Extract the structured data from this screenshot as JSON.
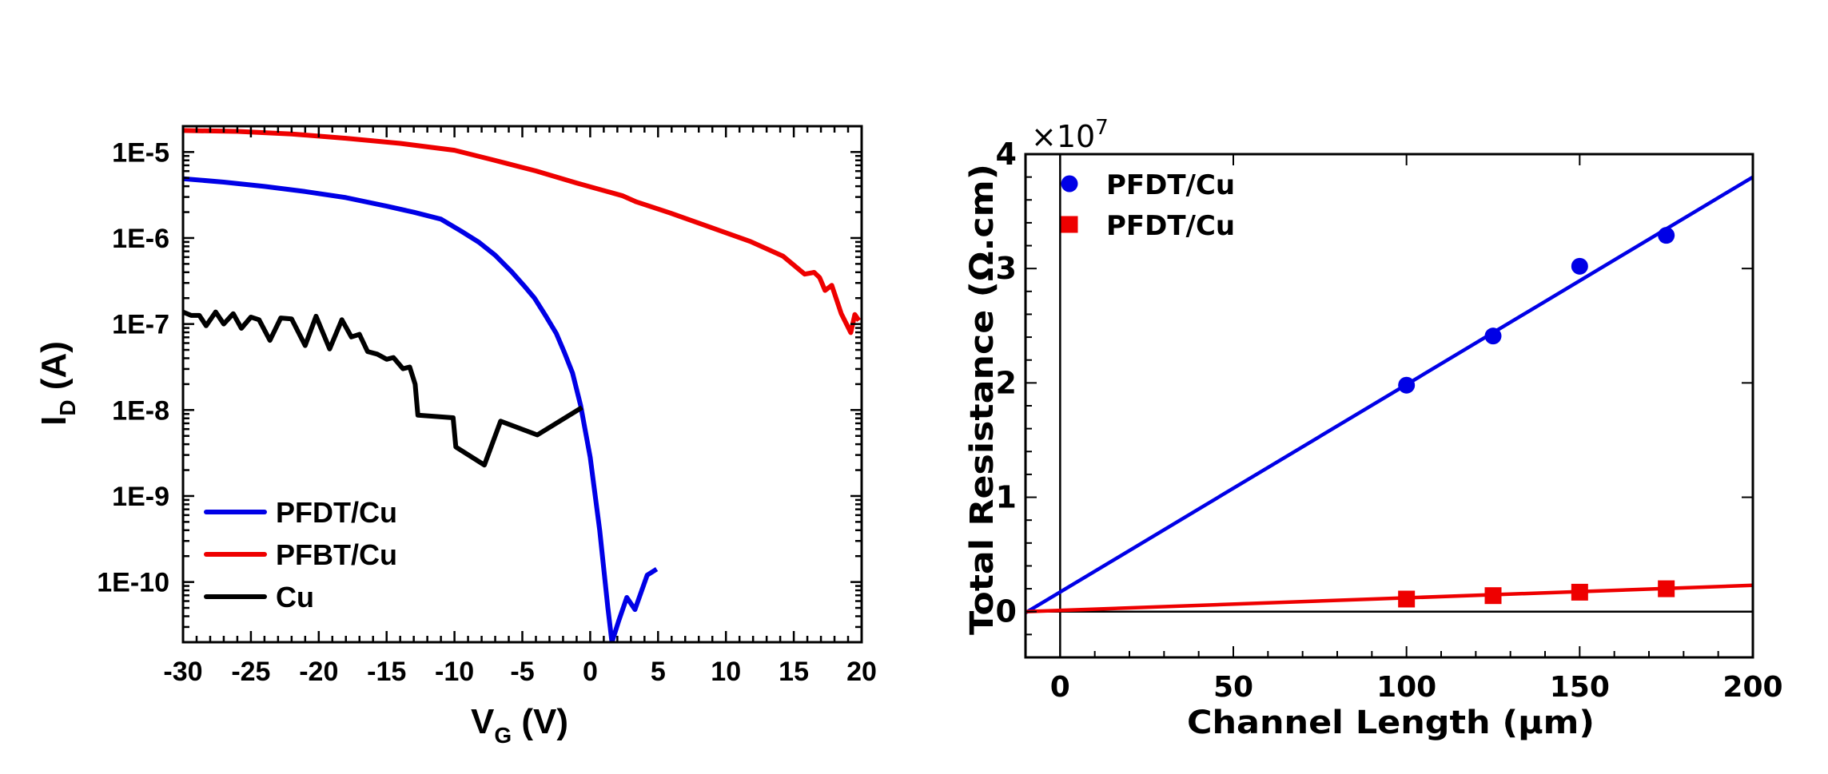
{
  "chart_data": [
    {
      "type": "line",
      "title": "",
      "xlabel": "V",
      "xlabel_sub": "G",
      "xlabel_unit": " (V)",
      "ylabel": "I",
      "ylabel_sub": "D",
      "ylabel_unit": " (A)",
      "yscale": "log",
      "xlim": [
        -30,
        20
      ],
      "ylim_log10": [
        -10.7,
        -4.7
      ],
      "xticks": [
        -30,
        -25,
        -20,
        -15,
        -10,
        -5,
        0,
        5,
        10,
        15,
        20
      ],
      "xtick_labels": [
        "-30",
        "-25",
        "-20",
        "-15",
        "-10",
        "-5",
        "0",
        "5",
        "10",
        "15",
        "20"
      ],
      "yticks_log10": [
        -5,
        -6,
        -7,
        -8,
        -9,
        -10
      ],
      "ytick_labels": [
        "1E-5",
        "1E-6",
        "1E-7",
        "1E-8",
        "1E-9",
        "1E-10"
      ],
      "grid": false,
      "legend_position": "bottom-left",
      "series": [
        {
          "name": "PFDT/Cu",
          "color": "#0000e6",
          "points_log10": [
            [
              -30,
              -5.31
            ],
            [
              -27,
              -5.35
            ],
            [
              -24,
              -5.4
            ],
            [
              -21,
              -5.46
            ],
            [
              -18,
              -5.53
            ],
            [
              -15,
              -5.63
            ],
            [
              -13,
              -5.7
            ],
            [
              -11,
              -5.78
            ],
            [
              -9.5,
              -5.92
            ],
            [
              -8.2,
              -6.05
            ],
            [
              -7,
              -6.2
            ],
            [
              -5.8,
              -6.39
            ],
            [
              -4.9,
              -6.55
            ],
            [
              -4.1,
              -6.7
            ],
            [
              -3.3,
              -6.9
            ],
            [
              -2.5,
              -7.11
            ],
            [
              -1.9,
              -7.33
            ],
            [
              -1.3,
              -7.57
            ],
            [
              -0.7,
              -7.95
            ],
            [
              0,
              -8.55
            ],
            [
              0.7,
              -9.4
            ],
            [
              1.3,
              -10.3
            ],
            [
              1.6,
              -10.7
            ],
            [
              2.1,
              -10.45
            ],
            [
              2.7,
              -10.18
            ],
            [
              3.3,
              -10.32
            ],
            [
              4.2,
              -9.92
            ],
            [
              4.9,
              -9.85
            ]
          ]
        },
        {
          "name": "PFBT/Cu",
          "color": "#ee0000",
          "points_log10": [
            [
              -30,
              -4.75
            ],
            [
              -26,
              -4.76
            ],
            [
              -22,
              -4.79
            ],
            [
              -18,
              -4.84
            ],
            [
              -14,
              -4.9
            ],
            [
              -10,
              -4.98
            ],
            [
              -7.2,
              -5.09
            ],
            [
              -4,
              -5.22
            ],
            [
              -1,
              -5.36
            ],
            [
              2.4,
              -5.51
            ],
            [
              3.4,
              -5.58
            ],
            [
              5.9,
              -5.71
            ],
            [
              9.3,
              -5.9
            ],
            [
              11.8,
              -6.04
            ],
            [
              14.2,
              -6.21
            ],
            [
              15.8,
              -6.42
            ],
            [
              16.5,
              -6.4
            ],
            [
              16.9,
              -6.46
            ],
            [
              17.3,
              -6.61
            ],
            [
              17.8,
              -6.55
            ],
            [
              18.5,
              -6.88
            ],
            [
              19.2,
              -7.1
            ],
            [
              19.5,
              -6.89
            ],
            [
              19.8,
              -6.96
            ]
          ]
        },
        {
          "name": "Cu",
          "color": "#000000",
          "points_log10": [
            [
              -30,
              -6.86
            ],
            [
              -29.4,
              -6.9
            ],
            [
              -28.8,
              -6.9
            ],
            [
              -28.3,
              -7.02
            ],
            [
              -27.6,
              -6.86
            ],
            [
              -27.0,
              -7.0
            ],
            [
              -26.3,
              -6.88
            ],
            [
              -25.7,
              -7.05
            ],
            [
              -25.0,
              -6.92
            ],
            [
              -24.4,
              -6.95
            ],
            [
              -23.6,
              -7.19
            ],
            [
              -22.8,
              -6.93
            ],
            [
              -22.0,
              -6.94
            ],
            [
              -21.0,
              -7.25
            ],
            [
              -20.2,
              -6.91
            ],
            [
              -19.2,
              -7.29
            ],
            [
              -18.3,
              -6.95
            ],
            [
              -17.6,
              -7.15
            ],
            [
              -17.0,
              -7.12
            ],
            [
              -16.4,
              -7.32
            ],
            [
              -15.7,
              -7.35
            ],
            [
              -15.0,
              -7.41
            ],
            [
              -14.5,
              -7.39
            ],
            [
              -13.8,
              -7.52
            ],
            [
              -13.3,
              -7.5
            ],
            [
              -12.9,
              -7.7
            ],
            [
              -12.7,
              -8.06
            ],
            [
              -10.1,
              -8.09
            ],
            [
              -9.9,
              -8.43
            ],
            [
              -7.8,
              -8.64
            ],
            [
              -6.6,
              -8.13
            ],
            [
              -3.9,
              -8.29
            ],
            [
              -0.6,
              -7.97
            ]
          ]
        }
      ]
    },
    {
      "type": "scatter",
      "title": "",
      "xlabel": "Channel Length (μm)",
      "ylabel": "Total Resistance (Ω.cm)",
      "y_multiplier_label": "×10",
      "y_multiplier_exp": "7",
      "xlim": [
        -10,
        200
      ],
      "ylim": [
        -0.4,
        4
      ],
      "xticks": [
        0,
        50,
        100,
        150,
        200
      ],
      "xtick_labels": [
        "0",
        "50",
        "100",
        "150",
        "200"
      ],
      "yticks": [
        0,
        1,
        2,
        3,
        4
      ],
      "ytick_labels": [
        "0",
        "1",
        "2",
        "3",
        "4"
      ],
      "grid": false,
      "legend_position": "top-left",
      "reference_lines": {
        "x": 0,
        "y": 0
      },
      "series": [
        {
          "name": "PFDT/Cu",
          "color": "#0000e6",
          "marker": "circle",
          "x": [
            100,
            125,
            150,
            175
          ],
          "y": [
            1.98,
            2.41,
            3.02,
            3.29
          ],
          "fit": [
            [
              -10,
              -0.01
            ],
            [
              200,
              3.8
            ]
          ]
        },
        {
          "name": "PFDT/Cu",
          "color": "#ee0000",
          "marker": "square",
          "x": [
            100,
            125,
            150,
            175
          ],
          "y": [
            0.11,
            0.14,
            0.17,
            0.2
          ],
          "fit": [
            [
              -10,
              0.0
            ],
            [
              200,
              0.23
            ]
          ]
        }
      ]
    }
  ]
}
